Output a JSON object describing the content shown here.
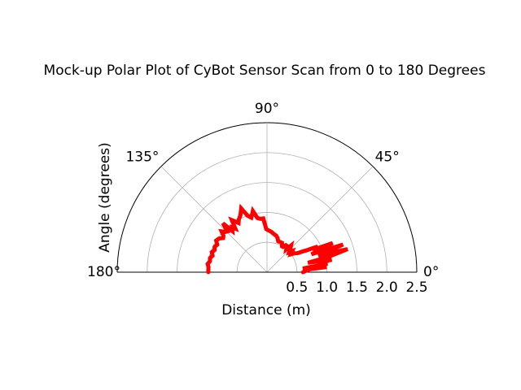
{
  "chart_data": {
    "type": "line",
    "projection": "polar",
    "title": "Mock-up Polar Plot of CyBot Sensor Scan from 0 to 180 Degrees",
    "xlabel": "Distance (m)",
    "ylabel": "Angle (degrees)",
    "theta_range_deg": [
      0,
      180
    ],
    "r_range": [
      0,
      2.5
    ],
    "angle_ticks": [
      {
        "deg": 0,
        "label": "0°"
      },
      {
        "deg": 45,
        "label": "45°"
      },
      {
        "deg": 90,
        "label": "90°"
      },
      {
        "deg": 135,
        "label": "135°"
      },
      {
        "deg": 180,
        "label": "180°"
      }
    ],
    "radial_ticks": [
      {
        "value": 0.5,
        "label": "0.5"
      },
      {
        "value": 1.0,
        "label": "1.0"
      },
      {
        "value": 1.5,
        "label": "1.5"
      },
      {
        "value": 2.0,
        "label": "2.0"
      },
      {
        "value": 2.5,
        "label": "2.5"
      }
    ],
    "grid": true,
    "series": [
      {
        "color": "#ff0000",
        "theta_deg": [
          0,
          2,
          4,
          5,
          6,
          8,
          10,
          11,
          13,
          14,
          16,
          18,
          20,
          22,
          24,
          26,
          27,
          29,
          30,
          32,
          35,
          37,
          40,
          42,
          45,
          48,
          50,
          53,
          55,
          58,
          60,
          63,
          66,
          70,
          73,
          76,
          80,
          84,
          88,
          91,
          94,
          97,
          100,
          103,
          106,
          109,
          112,
          115,
          118,
          120,
          122,
          124,
          126,
          128,
          130,
          132,
          134,
          136,
          138,
          140,
          142,
          145,
          148,
          151,
          154,
          157,
          160,
          163,
          166,
          169,
          172,
          175,
          178,
          180
        ],
        "r": [
          0.6,
          0.65,
          0.72,
          1.0,
          0.6,
          1.02,
          0.9,
          1.1,
          0.7,
          1.05,
          1.4,
          0.9,
          1.35,
          0.8,
          1.2,
          0.85,
          0.95,
          0.75,
          0.7,
          0.6,
          0.55,
          0.5,
          0.55,
          0.5,
          0.55,
          0.6,
          0.5,
          0.55,
          0.55,
          0.5,
          0.5,
          0.55,
          0.55,
          0.55,
          0.6,
          0.63,
          0.65,
          0.68,
          0.7,
          0.72,
          0.9,
          0.9,
          0.92,
          1.05,
          0.95,
          1.0,
          1.15,
          1.05,
          1.0,
          0.95,
          1.0,
          1.05,
          0.9,
          0.95,
          0.9,
          1.1,
          0.95,
          0.97,
          1.02,
          0.95,
          0.93,
          0.98,
          1.0,
          0.95,
          0.97,
          0.95,
          0.98,
          0.95,
          0.98,
          0.97,
          1.0,
          0.98,
          0.98,
          0.98
        ]
      }
    ]
  }
}
